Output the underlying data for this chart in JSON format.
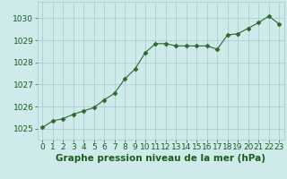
{
  "x": [
    0,
    1,
    2,
    3,
    4,
    5,
    6,
    7,
    8,
    9,
    10,
    11,
    12,
    13,
    14,
    15,
    16,
    17,
    18,
    19,
    20,
    21,
    22,
    23
  ],
  "y": [
    1025.05,
    1025.35,
    1025.45,
    1025.65,
    1025.8,
    1025.95,
    1026.3,
    1026.6,
    1027.25,
    1027.7,
    1028.45,
    1028.85,
    1028.85,
    1028.75,
    1028.75,
    1028.75,
    1028.75,
    1028.6,
    1029.25,
    1029.3,
    1029.55,
    1029.8,
    1030.1,
    1029.75
  ],
  "line_color": "#2d6a2d",
  "marker": "D",
  "marker_size": 2.5,
  "bg_color": "#ceeaea",
  "grid_color": "#a8c8c8",
  "xlabel": "Graphe pression niveau de la mer (hPa)",
  "xlabel_color": "#1a5c1a",
  "xlabel_fontsize": 7.5,
  "tick_color": "#1a5c1a",
  "tick_fontsize": 6.5,
  "ylim": [
    1024.5,
    1030.75
  ],
  "xlim": [
    -0.5,
    23.5
  ],
  "yticks": [
    1025,
    1026,
    1027,
    1028,
    1029,
    1030
  ],
  "xticks": [
    0,
    1,
    2,
    3,
    4,
    5,
    6,
    7,
    8,
    9,
    10,
    11,
    12,
    13,
    14,
    15,
    16,
    17,
    18,
    19,
    20,
    21,
    22,
    23
  ]
}
